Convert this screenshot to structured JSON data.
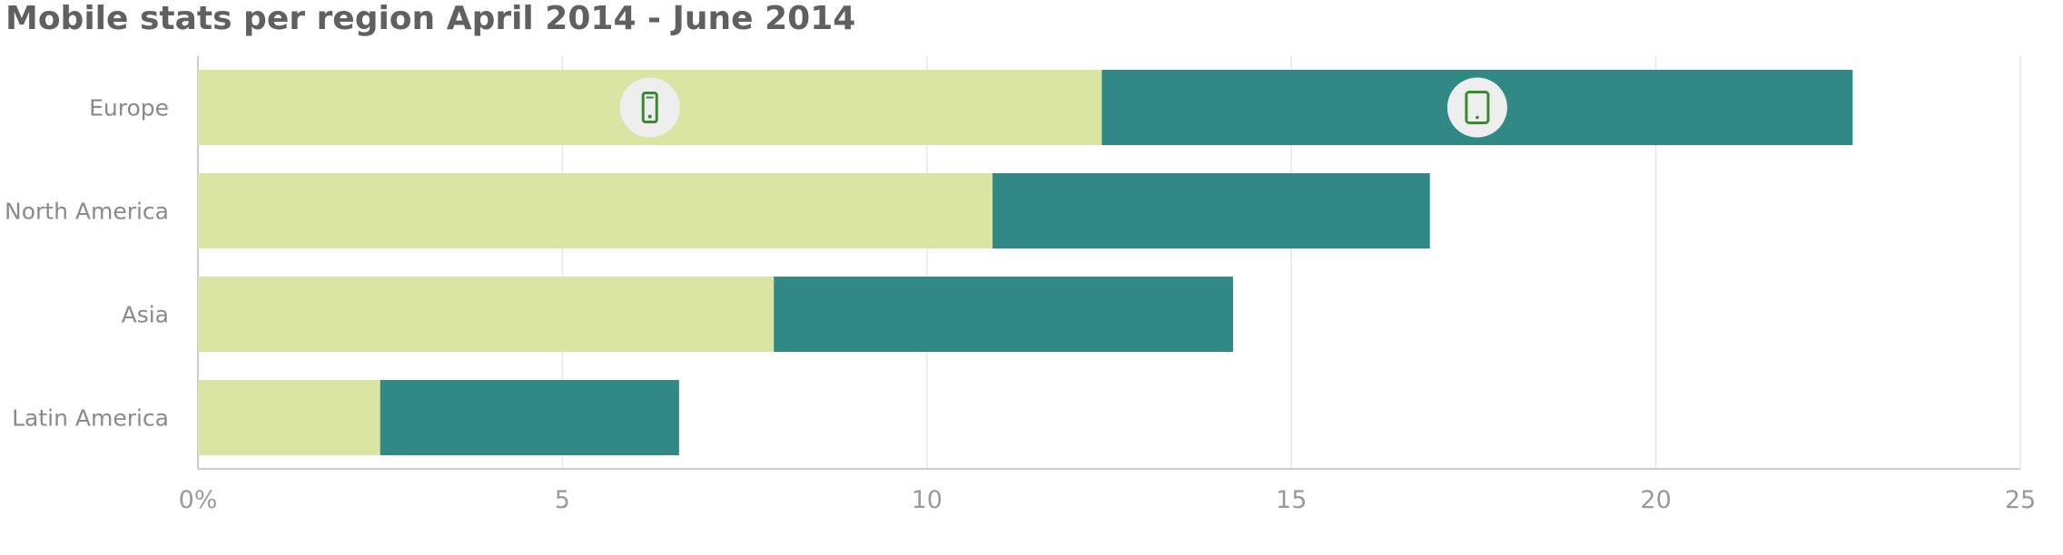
{
  "chart_data": {
    "type": "bar",
    "orientation": "horizontal",
    "stacked": true,
    "title": "Mobile stats per region April 2014 - June 2014",
    "categories": [
      "Europe",
      "North America",
      "Asia",
      "Latin America"
    ],
    "series": [
      {
        "values": [
          12.4,
          10.9,
          7.9,
          2.5
        ],
        "color": "#dae5a3",
        "icon": "smartphone-icon"
      },
      {
        "values": [
          10.3,
          6.0,
          6.3,
          4.1
        ],
        "color": "#318985",
        "icon": "tablet-icon"
      }
    ],
    "xlim": [
      0,
      25
    ],
    "x_ticks": [
      "0%",
      "5",
      "10",
      "15",
      "20",
      "25"
    ],
    "x_tick_values": [
      0,
      5,
      10,
      15,
      20,
      25
    ],
    "grid": true,
    "icon_row": "Europe",
    "icon_color": "#3a8a32",
    "icon_badge_color": "#eeeeee"
  }
}
